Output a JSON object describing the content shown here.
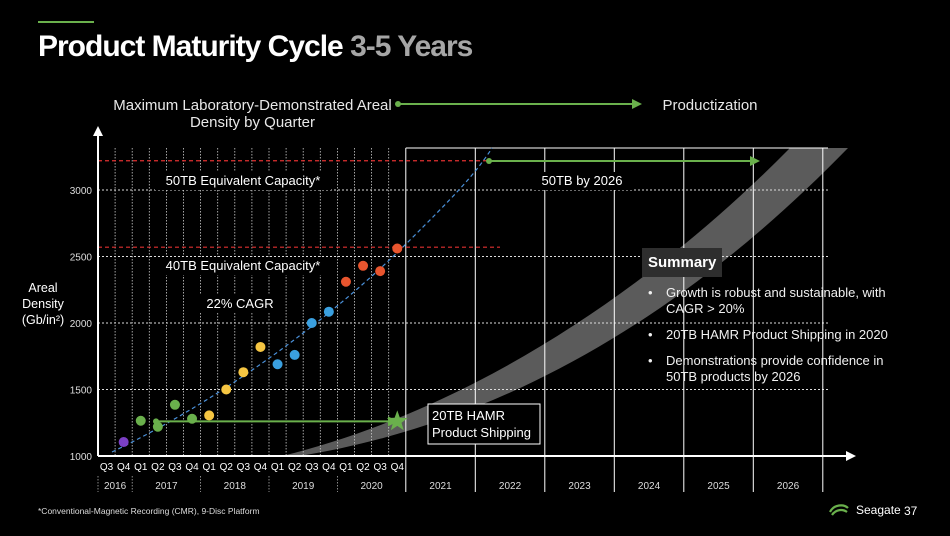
{
  "title": {
    "main": "Product Maturity Cycle",
    "accent": "3-5 Years"
  },
  "header": {
    "left": "Maximum Laboratory-Demonstrated Areal Density by Quarter",
    "right": "Productization"
  },
  "axis_title": {
    "line1": "Areal",
    "line2": "Density",
    "line3": "(Gb/in²)"
  },
  "annotations": {
    "cap50": "50TB Equivalent Capacity*",
    "cap40": "40TB Equivalent Capacity*",
    "cagr": "22% CAGR",
    "by2026": "50TB by 2026",
    "hamr_line1": "20TB HAMR",
    "hamr_line2": "Product Shipping"
  },
  "summary": {
    "title": "Summary",
    "bullets": [
      "Growth is robust and sustainable, with CAGR > 20%",
      "20TB HAMR Product Shipping in 2020",
      "Demonstrations provide confidence in 50TB products by 2026"
    ]
  },
  "footnote": "*Conventional-Magnetic Recording (CMR), 9-Disc Platform",
  "brand": "Seagate",
  "page_number": "37",
  "colors": {
    "green": "#6ab04c",
    "red_line": "#e03030",
    "curve": "#4a90d9",
    "band": "#7a7a7a"
  },
  "chart_data": {
    "type": "scatter",
    "y_ticks": [
      1000,
      1500,
      2000,
      2500,
      3000
    ],
    "ylim": [
      1000,
      3500
    ],
    "quarter_labels": [
      "Q3",
      "Q4",
      "Q1",
      "Q2",
      "Q3",
      "Q4",
      "Q1",
      "Q2",
      "Q3",
      "Q4",
      "Q1",
      "Q2",
      "Q3",
      "Q4",
      "Q1",
      "Q2",
      "Q3",
      "Q4"
    ],
    "year_labels": [
      "2016",
      "2017",
      "2018",
      "2019",
      "2020",
      "2021",
      "2022",
      "2023",
      "2024",
      "2025",
      "2026"
    ],
    "reference_lines": [
      {
        "label": "50TB Equivalent Capacity*",
        "value": 3220
      },
      {
        "label": "40TB Equivalent Capacity*",
        "value": 2570
      }
    ],
    "points": [
      {
        "quarter": "2016 Q4",
        "value": 1105,
        "color": "#7b3fc4"
      },
      {
        "quarter": "2017 Q1",
        "value": 1265,
        "color": "#6ab04c"
      },
      {
        "quarter": "2017 Q2",
        "value": 1220,
        "color": "#6ab04c"
      },
      {
        "quarter": "2017 Q3",
        "value": 1385,
        "color": "#6ab04c"
      },
      {
        "quarter": "2017 Q4",
        "value": 1280,
        "color": "#6ab04c"
      },
      {
        "quarter": "2018 Q1",
        "value": 1305,
        "color": "#f5c542"
      },
      {
        "quarter": "2018 Q2",
        "value": 1500,
        "color": "#f5c542"
      },
      {
        "quarter": "2018 Q3",
        "value": 1630,
        "color": "#f5c542"
      },
      {
        "quarter": "2018 Q4",
        "value": 1820,
        "color": "#f5c542"
      },
      {
        "quarter": "2019 Q1",
        "value": 1690,
        "color": "#3aa0e0"
      },
      {
        "quarter": "2019 Q2",
        "value": 1760,
        "color": "#3aa0e0"
      },
      {
        "quarter": "2019 Q3",
        "value": 2000,
        "color": "#3aa0e0"
      },
      {
        "quarter": "2019 Q4",
        "value": 2085,
        "color": "#3aa0e0"
      },
      {
        "quarter": "2020 Q1",
        "value": 2310,
        "color": "#e8552e"
      },
      {
        "quarter": "2020 Q2",
        "value": 2430,
        "color": "#e8552e"
      },
      {
        "quarter": "2020 Q3",
        "value": 2390,
        "color": "#e8552e"
      },
      {
        "quarter": "2020 Q4",
        "value": 2560,
        "color": "#e8552e"
      }
    ],
    "hamr_shipping": {
      "quarter": "2020 Q4",
      "value": 1260
    }
  }
}
